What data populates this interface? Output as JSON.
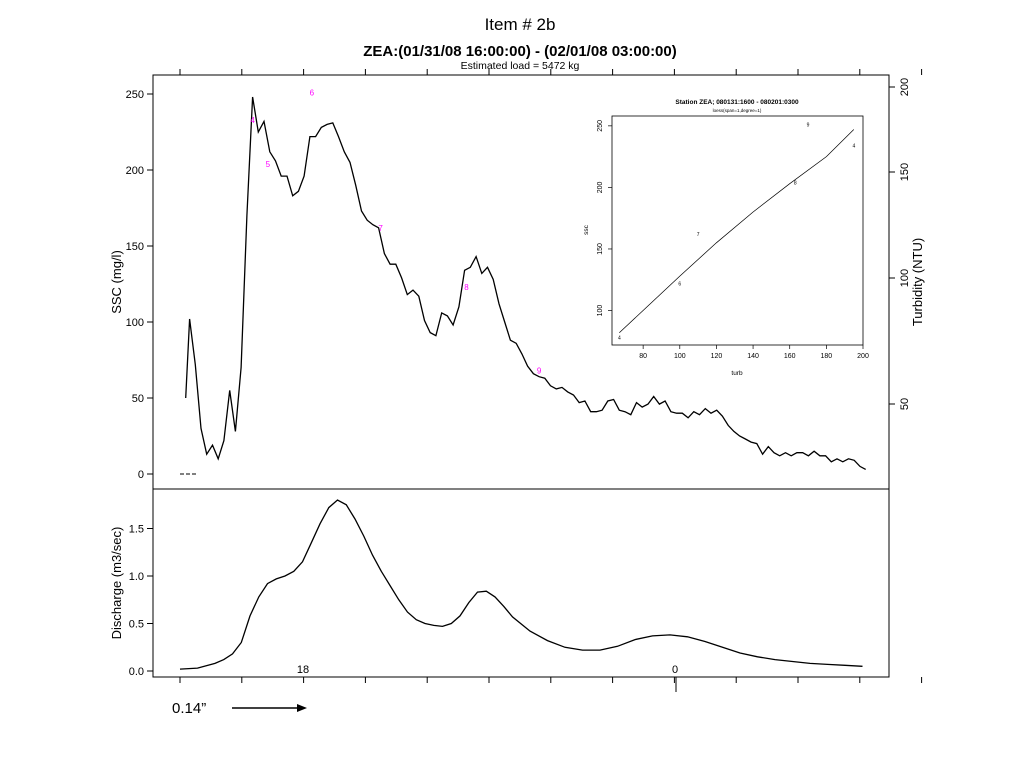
{
  "slide": {
    "heading": "Item # 2b",
    "rainfall_label": "0.14”"
  },
  "chart_data": [
    {
      "type": "line",
      "title": "ZEA:(01/31/08 16:00:00) - (02/01/08 03:00:00)",
      "subtitle": "Estimated load = 5472 kg",
      "ylabel": "SSC (mg/l)",
      "ylim": [
        0,
        260
      ],
      "yticks": [
        0,
        50,
        100,
        150,
        200,
        250
      ],
      "y2label": "Turbidity (NTU)",
      "y2ticks": [
        "50",
        "100",
        "150",
        "200"
      ],
      "grid": false,
      "series": [
        {
          "values": [
            [
              0.3,
              50
            ],
            [
              0.5,
              102
            ],
            [
              0.8,
              72
            ],
            [
              1.1,
              30
            ],
            [
              1.4,
              13
            ],
            [
              1.7,
              19
            ],
            [
              2.0,
              10
            ],
            [
              2.3,
              22
            ],
            [
              2.6,
              55
            ],
            [
              2.9,
              28
            ],
            [
              3.2,
              70
            ],
            [
              3.5,
              170
            ],
            [
              3.8,
              248
            ],
            [
              4.1,
              225
            ],
            [
              4.4,
              232
            ],
            [
              4.7,
              212
            ],
            [
              5.0,
              206
            ],
            [
              5.3,
              196
            ],
            [
              5.6,
              196
            ],
            [
              5.9,
              183
            ],
            [
              6.2,
              186
            ],
            [
              6.5,
              196
            ],
            [
              6.8,
              222
            ],
            [
              7.1,
              222
            ],
            [
              7.4,
              228
            ],
            [
              7.7,
              230
            ],
            [
              8.0,
              231
            ],
            [
              8.3,
              222
            ],
            [
              8.6,
              212
            ],
            [
              8.9,
              205
            ],
            [
              9.2,
              190
            ],
            [
              9.5,
              173
            ],
            [
              9.8,
              167
            ],
            [
              10.1,
              164
            ],
            [
              10.4,
              162
            ],
            [
              10.7,
              145
            ],
            [
              11.0,
              138
            ],
            [
              11.3,
              138
            ],
            [
              11.6,
              129
            ],
            [
              11.9,
              118
            ],
            [
              12.2,
              121
            ],
            [
              12.5,
              117
            ],
            [
              12.8,
              101
            ],
            [
              13.1,
              93
            ],
            [
              13.4,
              91
            ],
            [
              13.7,
              106
            ],
            [
              14.0,
              104
            ],
            [
              14.3,
              98
            ],
            [
              14.6,
              110
            ],
            [
              14.9,
              134
            ],
            [
              15.2,
              136
            ],
            [
              15.5,
              143
            ],
            [
              15.8,
              132
            ],
            [
              16.1,
              136
            ],
            [
              16.4,
              128
            ],
            [
              16.7,
              112
            ],
            [
              17.0,
              100
            ],
            [
              17.3,
              88
            ],
            [
              17.6,
              86
            ],
            [
              17.9,
              79
            ],
            [
              18.2,
              71
            ],
            [
              18.5,
              66
            ],
            [
              18.8,
              64
            ],
            [
              19.1,
              63
            ],
            [
              19.4,
              58
            ],
            [
              19.7,
              56
            ],
            [
              20.0,
              57
            ],
            [
              20.3,
              54
            ],
            [
              20.6,
              52
            ],
            [
              20.9,
              47
            ],
            [
              21.2,
              48
            ],
            [
              21.5,
              41
            ],
            [
              21.8,
              41
            ],
            [
              22.1,
              42
            ],
            [
              22.4,
              48
            ],
            [
              22.7,
              49
            ],
            [
              23.0,
              42
            ],
            [
              23.3,
              41
            ],
            [
              23.6,
              39
            ],
            [
              23.9,
              47
            ],
            [
              24.2,
              44
            ],
            [
              24.5,
              46
            ],
            [
              24.8,
              51
            ],
            [
              25.1,
              46
            ],
            [
              25.4,
              48
            ],
            [
              25.7,
              41
            ],
            [
              26.0,
              40
            ],
            [
              26.3,
              40
            ],
            [
              26.6,
              37
            ],
            [
              26.9,
              41
            ],
            [
              27.2,
              39
            ],
            [
              27.5,
              43
            ],
            [
              27.8,
              40
            ],
            [
              28.1,
              42
            ],
            [
              28.4,
              38
            ],
            [
              28.7,
              32
            ],
            [
              29.0,
              28
            ],
            [
              29.3,
              25
            ],
            [
              29.6,
              23
            ],
            [
              29.9,
              21
            ],
            [
              30.2,
              20
            ],
            [
              30.5,
              13
            ],
            [
              30.8,
              18
            ],
            [
              31.1,
              14
            ],
            [
              31.4,
              12
            ],
            [
              31.7,
              14
            ],
            [
              32.0,
              12
            ],
            [
              32.3,
              14
            ],
            [
              32.6,
              14
            ],
            [
              32.9,
              12
            ],
            [
              33.2,
              15
            ],
            [
              33.5,
              12
            ],
            [
              33.8,
              12
            ],
            [
              34.1,
              8
            ],
            [
              34.4,
              10
            ],
            [
              34.7,
              8
            ],
            [
              35.0,
              10
            ],
            [
              35.3,
              9
            ],
            [
              35.6,
              5
            ],
            [
              35.9,
              3
            ]
          ]
        }
      ],
      "sample_points": [
        {
          "label": "4",
          "x": 3.8,
          "y": 233
        },
        {
          "label": "5",
          "x": 4.6,
          "y": 204
        },
        {
          "label": "6",
          "x": 6.9,
          "y": 251
        },
        {
          "label": "7",
          "x": 10.5,
          "y": 162
        },
        {
          "label": "8",
          "x": 15.0,
          "y": 123
        },
        {
          "label": "9",
          "x": 18.8,
          "y": 68
        }
      ],
      "sample_point_color": "#ff00ff"
    },
    {
      "type": "line",
      "ylabel": "Discharge (m3/sec)",
      "ylim": [
        0,
        1.85
      ],
      "yticks": [
        "0.0",
        "0.5",
        "1.0",
        "1.5"
      ],
      "annotations": [
        "18",
        "0"
      ],
      "grid": false,
      "series": [
        {
          "values": [
            [
              0.0,
              0.02
            ],
            [
              1.0,
              0.03
            ],
            [
              2.0,
              0.08
            ],
            [
              2.5,
              0.12
            ],
            [
              3.0,
              0.18
            ],
            [
              3.5,
              0.3
            ],
            [
              4.0,
              0.58
            ],
            [
              4.5,
              0.78
            ],
            [
              5.0,
              0.92
            ],
            [
              5.5,
              0.97
            ],
            [
              6.0,
              1.0
            ],
            [
              6.5,
              1.05
            ],
            [
              7.0,
              1.15
            ],
            [
              7.5,
              1.35
            ],
            [
              8.0,
              1.55
            ],
            [
              8.5,
              1.72
            ],
            [
              9.0,
              1.8
            ],
            [
              9.5,
              1.75
            ],
            [
              10.0,
              1.6
            ],
            [
              10.5,
              1.42
            ],
            [
              11.0,
              1.22
            ],
            [
              11.5,
              1.05
            ],
            [
              12.0,
              0.9
            ],
            [
              12.5,
              0.75
            ],
            [
              13.0,
              0.62
            ],
            [
              13.5,
              0.54
            ],
            [
              14.0,
              0.5
            ],
            [
              14.5,
              0.48
            ],
            [
              15.0,
              0.47
            ],
            [
              15.5,
              0.5
            ],
            [
              16.0,
              0.58
            ],
            [
              16.5,
              0.72
            ],
            [
              17.0,
              0.83
            ],
            [
              17.5,
              0.84
            ],
            [
              18.0,
              0.78
            ],
            [
              18.5,
              0.68
            ],
            [
              19.0,
              0.57
            ],
            [
              20.0,
              0.42
            ],
            [
              21.0,
              0.32
            ],
            [
              22.0,
              0.25
            ],
            [
              23.0,
              0.22
            ],
            [
              24.0,
              0.22
            ],
            [
              25.0,
              0.26
            ],
            [
              26.0,
              0.33
            ],
            [
              27.0,
              0.37
            ],
            [
              28.0,
              0.38
            ],
            [
              29.0,
              0.36
            ],
            [
              30.0,
              0.31
            ],
            [
              31.0,
              0.25
            ],
            [
              32.0,
              0.19
            ],
            [
              33.0,
              0.15
            ],
            [
              34.0,
              0.12
            ],
            [
              35.0,
              0.1
            ],
            [
              36.0,
              0.08
            ],
            [
              37.0,
              0.07
            ],
            [
              38.0,
              0.06
            ],
            [
              39.0,
              0.05
            ]
          ]
        }
      ]
    },
    {
      "type": "scatter",
      "title": "Station ZEA; 080131:1600 - 080201:0300",
      "subtitle": "loess(span=1,degree=1)",
      "xlabel": "turb",
      "ylabel": "ssc",
      "xlim": [
        63,
        200
      ],
      "ylim": [
        72,
        258
      ],
      "xticks": [
        80,
        100,
        120,
        140,
        160,
        180,
        200
      ],
      "yticks": [
        100,
        150,
        200,
        250
      ],
      "points": [
        {
          "label": "4",
          "x": 67,
          "y": 78
        },
        {
          "label": "6",
          "x": 100,
          "y": 122
        },
        {
          "label": "7",
          "x": 110,
          "y": 162
        },
        {
          "label": "8",
          "x": 163,
          "y": 204
        },
        {
          "label": "9",
          "x": 170,
          "y": 251
        },
        {
          "label": "4",
          "x": 195,
          "y": 234
        }
      ],
      "fit_line": [
        [
          67,
          82
        ],
        [
          80,
          100
        ],
        [
          100,
          128
        ],
        [
          120,
          155
        ],
        [
          140,
          180
        ],
        [
          160,
          203
        ],
        [
          180,
          225
        ],
        [
          195,
          247
        ]
      ]
    }
  ]
}
